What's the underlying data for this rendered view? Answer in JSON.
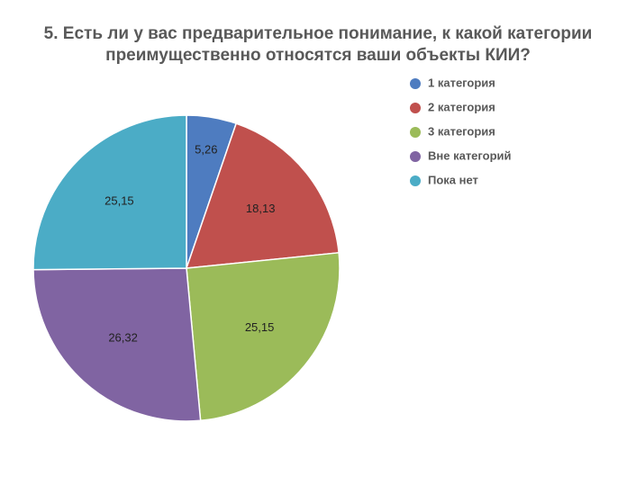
{
  "chart_data": {
    "type": "pie",
    "title_lines": [
      "5. Есть ли у вас предварительное понимание, к какой категории",
      "преимущественно относятся ваши объекты КИИ?"
    ],
    "slices": [
      {
        "label": "1 категория",
        "value": 5.26,
        "value_label": "5,26",
        "color": "#4e7cc0"
      },
      {
        "label": "2 категория",
        "value": 18.13,
        "value_label": "18,13",
        "color": "#c0504d"
      },
      {
        "label": "3 категория",
        "value": 25.15,
        "value_label": "25,15",
        "color": "#9bbb59"
      },
      {
        "label": "Вне категорий",
        "value": 26.32,
        "value_label": "26,32",
        "color": "#8064a2"
      },
      {
        "label": "Пока нет",
        "value": 25.15,
        "value_label": "25,15",
        "color": "#4bacc6"
      }
    ],
    "legend_position": "right",
    "start_angle": "top",
    "direction": "clockwise"
  }
}
